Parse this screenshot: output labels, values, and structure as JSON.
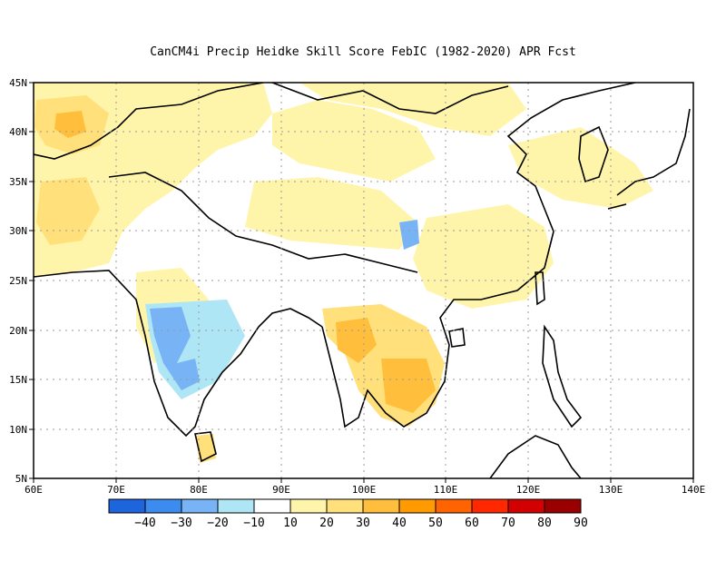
{
  "title": "CanCM4i Precip Heidke Skill Score FebIC (1982-2020) APR Fcst",
  "map": {
    "lon_min": 60,
    "lon_max": 140,
    "lat_min": 5,
    "lat_max": 45,
    "lon_ticks": [
      "60E",
      "70E",
      "80E",
      "90E",
      "100E",
      "110E",
      "120E",
      "130E",
      "140E"
    ],
    "lat_ticks": [
      "5N",
      "10N",
      "15N",
      "20N",
      "25N",
      "30N",
      "35N",
      "40N",
      "45N"
    ],
    "gridlines": true
  },
  "colorbar": {
    "colors": [
      "#1e64dc",
      "#3c8cf0",
      "#78b4f5",
      "#afe6f5",
      "#ffffff",
      "#fff5aa",
      "#ffe07a",
      "#ffbf3c",
      "#ff9a00",
      "#ff6400",
      "#ff2800",
      "#d20000",
      "#9b0000"
    ],
    "labels": [
      "-40",
      "-30",
      "-20",
      "-10",
      "10",
      "20",
      "30",
      "40",
      "50",
      "60",
      "70",
      "80",
      "90"
    ]
  },
  "skill_regions": [
    {
      "name": "central-asia",
      "level": 20
    },
    {
      "name": "tajikistan-core",
      "level": 30
    },
    {
      "name": "afghanistan-core",
      "level": 30
    },
    {
      "name": "tibet-east",
      "level": 20
    },
    {
      "name": "south-china",
      "level": 20
    },
    {
      "name": "indochina",
      "level": 30
    },
    {
      "name": "cambodia-core",
      "level": 40
    },
    {
      "name": "myanmar-core",
      "level": 40
    },
    {
      "name": "central-india",
      "level": -20
    },
    {
      "name": "north-china",
      "level": 20
    }
  ]
}
